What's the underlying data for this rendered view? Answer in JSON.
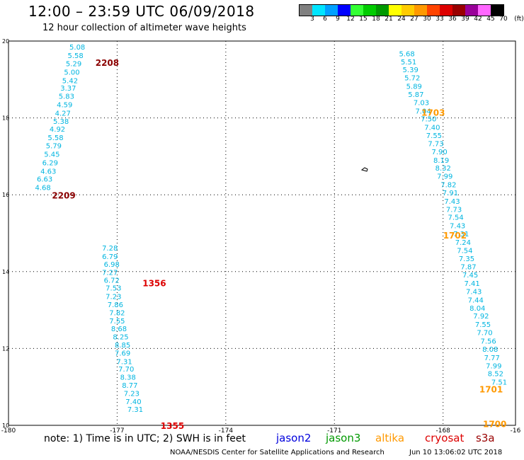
{
  "header": {
    "title": "12:00 – 23:59 UTC 06/09/2018",
    "subtitle": "12 hour collection of altimeter wave heights"
  },
  "color_scale": {
    "labels": [
      "3",
      "6",
      "9",
      "12",
      "15",
      "18",
      "21",
      "24",
      "27",
      "30",
      "33",
      "36",
      "39",
      "42",
      "45",
      "70",
      "(ft)"
    ],
    "colors": [
      "#808080",
      "#00e5ff",
      "#00a0ff",
      "#0000ff",
      "#33ff33",
      "#00cc00",
      "#009900",
      "#ffff00",
      "#ffcc00",
      "#ff9900",
      "#ff4400",
      "#dd0000",
      "#990000",
      "#990099",
      "#ff66ff",
      "#000000"
    ]
  },
  "footer": {
    "note": "note: 1) Time is in UTC; 2) SWH is in feet",
    "legend": [
      {
        "name": "jason2",
        "color": "#0000dd"
      },
      {
        "name": "jason3",
        "color": "#009900"
      },
      {
        "name": "altika",
        "color": "#ff9900"
      },
      {
        "name": "cryosat",
        "color": "#dd0000"
      },
      {
        "name": "s3a",
        "color": "#990000"
      }
    ],
    "credit": "NOAA/NESDIS Center for Satellite Applications and Research",
    "timestamp": "Jun 10 13:06:02 UTC 2018"
  },
  "chart_data": {
    "type": "scatter",
    "xlim": [
      -180,
      -166
    ],
    "ylim": [
      10,
      20
    ],
    "x_ticks": [
      "-180",
      "-177",
      "-174",
      "-171",
      "-168",
      "-16"
    ],
    "y_ticks": [
      "20",
      "18",
      "16",
      "14",
      "12",
      "10"
    ],
    "grid": true,
    "tracks": [
      {
        "x": [
          -178.1,
          -178.15,
          -178.2,
          -178.25,
          -178.3,
          -178.35,
          -178.4,
          -178.45,
          -178.5,
          -178.55,
          -178.65,
          -178.7,
          -178.75,
          -178.8,
          -178.85,
          -178.9,
          -179.0,
          -179.05,
          -179.15,
          -179.25
        ],
        "y": [
          19.85,
          19.63,
          19.42,
          19.2,
          18.98,
          18.78,
          18.57,
          18.35,
          18.13,
          17.92,
          17.72,
          17.5,
          17.28,
          17.06,
          16.84,
          16.62,
          16.42,
          16.2,
          15.99,
          15.77
        ],
        "values": [
          "5.08",
          "5.58",
          "5.29",
          "5.00",
          "5.42",
          "3.37",
          "5.83",
          "4.59",
          "4.27",
          "5.38",
          "4.92",
          "5.58",
          "5.79",
          "5.45",
          "6.29",
          "4.63",
          "6.63",
          "4.68",
          "",
          ""
        ],
        "color": "#00b5e0"
      },
      {
        "x": [
          -177.2,
          -177.2,
          -177.15,
          -177.2,
          -177.15,
          -177.1,
          -177.1,
          -177.05,
          -177.0,
          -177.0,
          -176.95,
          -176.9,
          -176.85,
          -176.85,
          -176.8,
          -176.75,
          -176.7,
          -176.65,
          -176.6,
          -176.55,
          -176.5
        ],
        "y": [
          14.62,
          14.4,
          14.2,
          13.99,
          13.78,
          13.58,
          13.36,
          13.15,
          12.94,
          12.73,
          12.52,
          12.31,
          12.1,
          11.89,
          11.67,
          11.47,
          11.26,
          11.05,
          10.84,
          10.63,
          10.42
        ],
        "values": [
          "7.28",
          "6.79",
          "6.98",
          "7.27",
          "6.72",
          "7.53",
          "7.23",
          "7.86",
          "7.82",
          "7.55",
          "8.68",
          "8.25",
          "8.85",
          "7.69",
          "7.31",
          "7.70",
          "8.38",
          "8.77",
          "7.23",
          "7.40",
          "7.31"
        ],
        "color": "#00b5e0"
      },
      {
        "x": [
          -169.0,
          -168.95,
          -168.9,
          -168.85,
          -168.8,
          -168.75,
          -168.6,
          -168.55,
          -168.4,
          -168.3,
          -168.25,
          -168.2,
          -168.1,
          -168.05,
          -168.0,
          -167.95,
          -167.85,
          -167.8,
          -167.75,
          -167.7,
          -167.65,
          -167.6,
          -167.5,
          -167.45,
          -167.4,
          -167.35,
          -167.3,
          -167.25,
          -167.2,
          -167.15,
          -167.1,
          -167.05,
          -166.95,
          -166.9,
          -166.85,
          -166.75,
          -166.7,
          -166.65,
          -166.6,
          -166.55,
          -166.45,
          -166.4,
          -166.35,
          -166.3,
          -166.25,
          -166.2,
          -166.15,
          -166.1,
          -166.05,
          -166.0
        ],
        "y": [
          19.68,
          19.47,
          19.26,
          19.05,
          18.83,
          18.62,
          18.41,
          18.19,
          17.98,
          17.76,
          17.55,
          17.34,
          17.13,
          16.91,
          16.7,
          16.49,
          16.27,
          16.06,
          15.84,
          15.63,
          15.42,
          15.2,
          14.99,
          14.77,
          14.56,
          14.35,
          14.13,
          13.92,
          13.7,
          13.49,
          13.27,
          13.06,
          12.85,
          12.63,
          12.42,
          12.2,
          11.99,
          11.77,
          11.56,
          11.35,
          11.13,
          10.92,
          10.7,
          10.49,
          10.28,
          10.06,
          9.9,
          9.85,
          9.8,
          9.75
        ],
        "values": [
          "5.68",
          "5.51",
          "5.39",
          "5.72",
          "5.89",
          "5.87",
          "7.03",
          "7.04",
          "7.50",
          "7.40",
          "7.55",
          "7.73",
          "7.90",
          "8.19",
          "8.32",
          "7.99",
          "7.82",
          "7.91",
          "7.43",
          "7.73",
          "7.54",
          "7.43",
          "7.31",
          "7.24",
          "7.54",
          "7.35",
          "7.87",
          "7.45",
          "7.41",
          "7.43",
          "7.44",
          "8.04",
          "7.92",
          "7.55",
          "7.70",
          "7.56",
          "8.08",
          "7.77",
          "7.99",
          "8.52",
          "7.51",
          "",
          "",
          "",
          "",
          "",
          "",
          "",
          "",
          ""
        ],
        "color": "#00b5e0"
      }
    ],
    "pass_labels": [
      {
        "text": "2208",
        "color": "#8b0000"
      },
      {
        "text": "2209",
        "color": "#8b0000"
      },
      {
        "text": "1356",
        "color": "#dd0000"
      },
      {
        "text": "1355",
        "color": "#dd0000"
      },
      {
        "text": "1703",
        "color": "#ff9900"
      },
      {
        "text": "1702",
        "color": "#ff9900"
      },
      {
        "text": "1701",
        "color": "#ff9900"
      },
      {
        "text": "1700",
        "color": "#ff9900"
      }
    ]
  }
}
